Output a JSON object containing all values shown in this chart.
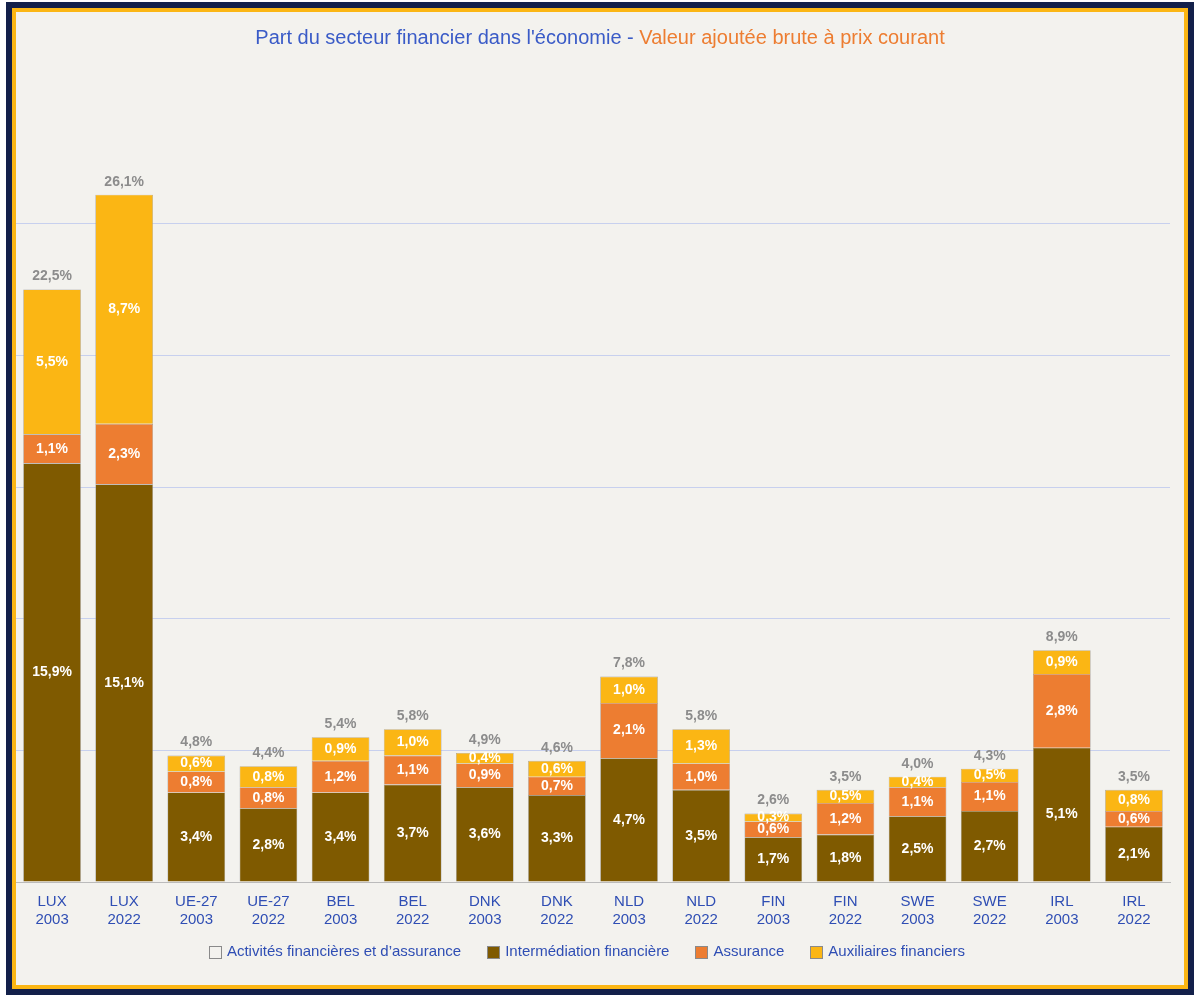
{
  "chart_data": {
    "type": "bar",
    "title": "Part du secteur financier dans l'économie -",
    "subtitle": "Valeur ajoutée brute à prix courant",
    "categories": [
      "LUX 2003",
      "LUX 2022",
      "UE-27 2003",
      "UE-27 2022",
      "BEL 2003",
      "BEL 2022",
      "DNK 2003",
      "DNK 2022",
      "NLD 2003",
      "NLD 2022",
      "FIN 2003",
      "FIN 2022",
      "SWE 2003",
      "SWE 2022",
      "IRL 2003",
      "IRL 2022"
    ],
    "stacked": true,
    "yticks": [
      {
        "value": 0,
        "label": null
      },
      {
        "value": 5,
        "label": null
      },
      {
        "value": 10,
        "label": null
      },
      {
        "value": 15,
        "label": null
      },
      {
        "value": 20,
        "label": null
      },
      {
        "value": 25,
        "label": null
      }
    ],
    "grid": "y",
    "tick_labels": "x",
    "legend": "bottom",
    "annotations": [
      "Activités financières et d’assurance"
    ],
    "totals": [
      "22,5%",
      "26,1%",
      "4,8%",
      "4,4%",
      "5,4%",
      "5,8%",
      "4,9%",
      "4,6%",
      "7,8%",
      "5,8%",
      "2,6%",
      "3,5%",
      "4,0%",
      "4,3%",
      "8,9%",
      "3,5%"
    ],
    "series": [
      {
        "name": "Intermédiation financière",
        "color": "#7f5a00",
        "values": [
          15.9,
          15.1,
          3.4,
          2.8,
          3.4,
          3.7,
          3.6,
          3.3,
          4.7,
          3.5,
          1.7,
          1.8,
          2.5,
          2.7,
          5.1,
          2.1
        ],
        "value_labels": [
          "15,9%",
          "15,1%",
          "3,4%",
          "2,8%",
          "3,4%",
          "3,7%",
          "3,6%",
          "3,3%",
          "4,7%",
          "3,5%",
          "1,7%",
          "1,8%",
          "2,5%",
          "2,7%",
          "5,1%",
          "2,1%"
        ]
      },
      {
        "name": "Assurance",
        "color": "#ed7d31",
        "values": [
          1.1,
          2.3,
          0.8,
          0.8,
          1.2,
          1.1,
          0.9,
          0.7,
          2.1,
          1.0,
          0.6,
          1.2,
          1.1,
          1.1,
          2.8,
          0.6
        ],
        "value_labels": [
          "1,1%",
          "2,3%",
          "0,8%",
          "0,8%",
          "1,2%",
          "1,1%",
          "0,9%",
          "0,7%",
          "2,1%",
          "1,0%",
          "0,6%",
          "1,2%",
          "1,1%",
          "1,1%",
          "2,8%",
          "0,6%"
        ]
      },
      {
        "name": "Auxiliaires financiers",
        "color": "#fbb614",
        "values": [
          5.5,
          8.7,
          0.6,
          0.8,
          0.9,
          1.0,
          0.4,
          0.6,
          1.0,
          1.3,
          0.3,
          0.5,
          0.4,
          0.5,
          0.9,
          0.8
        ],
        "value_labels": [
          "5,5%",
          "8,7%",
          "0,6%",
          "0,8%",
          "0,9%",
          "1,0%",
          "0,4%",
          "0,6%",
          "1,0%",
          "1,3%",
          "0,3%",
          "0,5%",
          "0,4%",
          "0,5%",
          "0,9%",
          "0,8%"
        ]
      }
    ]
  }
}
